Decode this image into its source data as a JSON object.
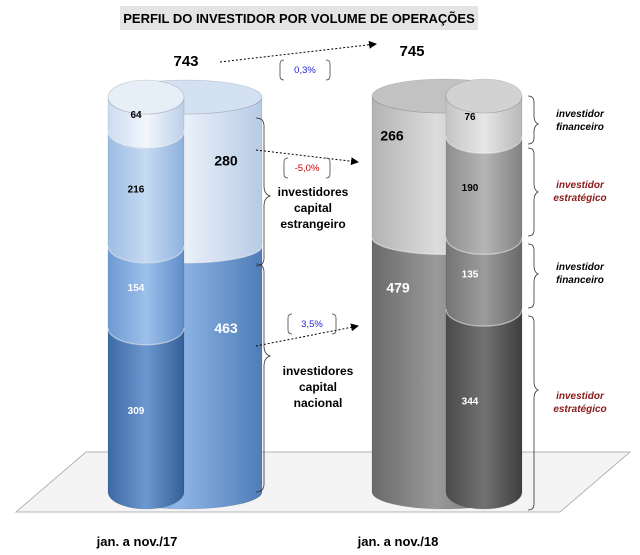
{
  "chart_data": {
    "type": "bar",
    "title": "PERFIL DO INVESTIDOR POR VOLUME DE OPERAÇÕES",
    "categories": [
      "jan. a nov./17",
      "jan. a nov./18"
    ],
    "totals": [
      743,
      745
    ],
    "total_change": "0,3%",
    "groups": [
      {
        "name": "investidores capital estrangeiro",
        "values": [
          280,
          266
        ],
        "change": "-5,0%",
        "split": [
          {
            "name": "investidor financeiro",
            "values": [
              64,
              76
            ]
          },
          {
            "name": "investidor estratégico",
            "values": [
              216,
              190
            ]
          }
        ]
      },
      {
        "name": "investidores capital nacional",
        "values": [
          463,
          479
        ],
        "change": "3,5%",
        "split": [
          {
            "name": "investidor financeiro",
            "values": [
              154,
              135
            ]
          },
          {
            "name": "investidor estratégico",
            "values": [
              309,
              344
            ]
          }
        ]
      }
    ],
    "colors": {
      "y17_foreign": "#dbe7f5",
      "y17_national": "#6f9bd3",
      "y18_foreign": "#c9c9c9",
      "y18_national": "#7e7e7e",
      "change_positive": "#1f1fcf",
      "change_negative": "#d40000",
      "side_label": "#8b1a1a"
    }
  }
}
